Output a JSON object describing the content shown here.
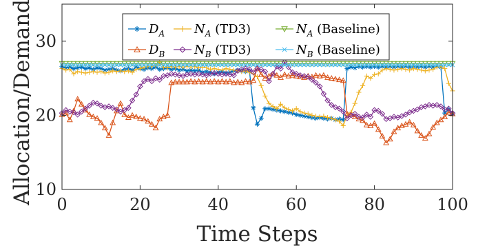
{
  "chart_data": {
    "type": "line",
    "xlabel": "Time Steps",
    "ylabel": "Allocation/Demand",
    "xlim": [
      0,
      100
    ],
    "ylim": [
      10,
      35
    ],
    "xticks": [
      0,
      20,
      40,
      60,
      80,
      100
    ],
    "yticks": [
      10,
      20,
      30
    ],
    "x": [
      0,
      1,
      2,
      3,
      4,
      5,
      6,
      7,
      8,
      9,
      10,
      11,
      12,
      13,
      14,
      15,
      16,
      17,
      18,
      19,
      20,
      21,
      22,
      23,
      24,
      25,
      26,
      27,
      28,
      29,
      30,
      31,
      32,
      33,
      34,
      35,
      36,
      37,
      38,
      39,
      40,
      41,
      42,
      43,
      44,
      45,
      46,
      47,
      48,
      49,
      50,
      51,
      52,
      53,
      54,
      55,
      56,
      57,
      58,
      59,
      60,
      61,
      62,
      63,
      64,
      65,
      66,
      67,
      68,
      69,
      70,
      71,
      72,
      73,
      74,
      75,
      76,
      77,
      78,
      79,
      80,
      81,
      82,
      83,
      84,
      85,
      86,
      87,
      88,
      89,
      90,
      91,
      92,
      93,
      94,
      95,
      96,
      97,
      98,
      99,
      100
    ],
    "legend_position": "top-center",
    "grid": false,
    "series": [
      {
        "name_main": "D",
        "name_sub": "A",
        "name_suffix": "",
        "color": "#0072BD",
        "marker": "star",
        "values": [
          26.6,
          26.4,
          26.5,
          26.3,
          26.4,
          26.5,
          26.3,
          26.4,
          26.2,
          26.4,
          26.3,
          26.1,
          26.2,
          26.3,
          26.1,
          26.0,
          26.2,
          26.3,
          26.1,
          26.5,
          26.3,
          26.2,
          26.4,
          26.3,
          26.5,
          26.2,
          26.3,
          26.4,
          26.2,
          26.3,
          26.1,
          26.2,
          26.0,
          26.1,
          26.0,
          26.1,
          25.8,
          25.9,
          25.8,
          25.6,
          25.8,
          25.9,
          25.7,
          25.8,
          26.0,
          26.1,
          26.0,
          25.9,
          26.0,
          21.0,
          18.8,
          19.6,
          20.9,
          20.9,
          20.8,
          20.7,
          20.6,
          20.5,
          20.4,
          20.3,
          20.1,
          20.0,
          19.9,
          19.8,
          19.7,
          19.6,
          19.7,
          19.6,
          19.5,
          19.6,
          19.4,
          19.5,
          19.4,
          26.3,
          26.5,
          26.4,
          26.6,
          26.5,
          26.6,
          26.5,
          26.6,
          26.5,
          26.6,
          26.5,
          26.6,
          26.5,
          26.6,
          26.5,
          26.6,
          26.5,
          26.6,
          26.5,
          26.6,
          26.5,
          26.6,
          26.5,
          26.6,
          26.5,
          20.3,
          20.8,
          20.2
        ]
      },
      {
        "name_main": "N",
        "name_sub": "A",
        "name_suffix": " (TD3)",
        "color": "#EDB120",
        "marker": "plus",
        "values": [
          26.3,
          26.1,
          26.2,
          25.6,
          25.9,
          25.8,
          25.7,
          25.8,
          25.9,
          25.8,
          25.9,
          25.7,
          25.8,
          26.0,
          25.9,
          26.0,
          25.9,
          26.0,
          25.8,
          26.2,
          26.3,
          26.5,
          26.6,
          26.6,
          26.7,
          27.2,
          26.5,
          26.4,
          26.6,
          26.5,
          26.6,
          26.5,
          26.6,
          26.5,
          26.6,
          26.4,
          26.5,
          26.4,
          26.2,
          26.3,
          26.2,
          26.1,
          26.3,
          26.2,
          26.1,
          26.0,
          25.9,
          26.0,
          25.8,
          25.6,
          25.2,
          24.0,
          22.6,
          21.6,
          21.2,
          20.9,
          21.5,
          21.0,
          20.8,
          20.6,
          20.9,
          20.5,
          20.3,
          20.2,
          20.0,
          19.9,
          19.8,
          19.9,
          19.7,
          19.6,
          19.4,
          19.2,
          18.6,
          20.0,
          20.4,
          21.6,
          23.1,
          24.0,
          25.3,
          25.0,
          25.5,
          25.6,
          26.1,
          26.3,
          26.2,
          26.1,
          26.2,
          26.3,
          26.2,
          26.1,
          26.3,
          26.2,
          26.1,
          26.0,
          26.1,
          26.2,
          26.5,
          26.6,
          26.3,
          24.3,
          23.3
        ]
      },
      {
        "name_main": "N",
        "name_sub": "A",
        "name_suffix": " (Baseline)",
        "color": "#77AC30",
        "marker": "triangle-down",
        "values": [
          27.0,
          27.0,
          27.0,
          27.0,
          27.0,
          27.0,
          27.0,
          27.0,
          27.0,
          27.0,
          27.0,
          27.0,
          27.0,
          27.0,
          27.0,
          27.0,
          27.0,
          27.0,
          27.0,
          27.0,
          27.0,
          27.0,
          27.0,
          27.0,
          27.0,
          27.0,
          27.0,
          27.0,
          27.0,
          27.0,
          27.0,
          27.0,
          27.0,
          27.0,
          27.0,
          27.0,
          27.0,
          27.0,
          27.0,
          27.0,
          27.0,
          27.0,
          27.0,
          27.0,
          27.0,
          27.0,
          27.0,
          27.0,
          27.0,
          27.0,
          27.0,
          27.0,
          27.0,
          27.0,
          27.0,
          27.0,
          27.0,
          27.0,
          27.0,
          27.0,
          27.0,
          27.0,
          27.0,
          27.0,
          27.0,
          27.0,
          27.0,
          27.0,
          27.0,
          27.0,
          27.0,
          27.0,
          27.0,
          27.0,
          27.0,
          27.0,
          27.0,
          27.0,
          27.0,
          27.0,
          27.0,
          27.0,
          27.0,
          27.0,
          27.0,
          27.0,
          27.0,
          27.0,
          27.0,
          27.0,
          27.0,
          27.0,
          27.0,
          27.0,
          27.0,
          27.0,
          27.0,
          27.0,
          27.0,
          27.0,
          27.0
        ]
      },
      {
        "name_main": "D",
        "name_sub": "B",
        "name_suffix": "",
        "color": "#D95319",
        "marker": "triangle-up",
        "values": [
          20.1,
          20.3,
          19.4,
          20.6,
          22.2,
          21.5,
          20.7,
          20.1,
          19.8,
          19.6,
          19.0,
          18.3,
          17.3,
          19.0,
          20.6,
          21.6,
          20.1,
          19.7,
          20.0,
          19.8,
          19.6,
          19.5,
          19.2,
          18.8,
          18.3,
          19.5,
          19.8,
          20.0,
          24.4,
          24.5,
          24.5,
          24.5,
          24.5,
          24.6,
          24.5,
          24.6,
          24.5,
          24.6,
          24.5,
          24.6,
          24.5,
          24.6,
          24.5,
          24.6,
          24.4,
          24.5,
          24.4,
          24.6,
          24.5,
          24.7,
          26.4,
          25.5,
          25.0,
          25.3,
          25.6,
          25.4,
          25.1,
          25.5,
          25.3,
          25.4,
          25.3,
          25.2,
          25.1,
          25.3,
          25.2,
          25.4,
          25.3,
          25.4,
          25.1,
          25.0,
          24.9,
          24.8,
          24.7,
          20.2,
          20.1,
          19.8,
          19.5,
          19.3,
          18.7,
          18.6,
          18.9,
          18.1,
          17.2,
          16.3,
          16.8,
          17.8,
          18.3,
          18.6,
          18.8,
          19.1,
          18.7,
          17.9,
          17.3,
          16.9,
          17.5,
          18.4,
          19.0,
          19.4,
          19.8,
          20.4,
          20.2
        ]
      },
      {
        "name_main": "N",
        "name_sub": "B",
        "name_suffix": " (TD3)",
        "color": "#7E2F8E",
        "marker": "diamond",
        "values": [
          20.3,
          20.7,
          20.5,
          20.4,
          20.1,
          20.5,
          20.9,
          21.3,
          21.7,
          21.6,
          21.3,
          21.1,
          21.2,
          21.0,
          20.8,
          20.5,
          20.7,
          21.0,
          22.0,
          22.8,
          23.9,
          24.6,
          24.9,
          24.6,
          25.0,
          24.8,
          25.3,
          25.4,
          25.6,
          25.5,
          25.4,
          25.3,
          25.5,
          25.6,
          25.5,
          25.6,
          25.5,
          25.4,
          25.6,
          25.7,
          25.6,
          25.5,
          25.6,
          25.5,
          25.4,
          26.0,
          26.2,
          26.3,
          26.2,
          25.8,
          26.3,
          26.2,
          25.9,
          24.6,
          25.6,
          26.6,
          26.3,
          27.2,
          26.5,
          25.8,
          25.6,
          25.4,
          25.3,
          25.2,
          24.8,
          24.4,
          23.9,
          22.9,
          22.0,
          21.4,
          21.1,
          20.9,
          20.5,
          19.6,
          20.0,
          20.2,
          19.8,
          19.7,
          20.1,
          19.8,
          20.7,
          20.6,
          20.2,
          19.5,
          19.6,
          19.8,
          19.7,
          19.9,
          20.1,
          20.4,
          20.6,
          20.8,
          21.1,
          21.2,
          21.4,
          21.3,
          21.4,
          21.2,
          20.8,
          20.9,
          20.3
        ]
      },
      {
        "name_main": "N",
        "name_sub": "B",
        "name_suffix": " (Baseline)",
        "color": "#4DBEEE",
        "marker": "x",
        "values": [
          26.8,
          26.8,
          26.8,
          26.8,
          26.8,
          26.8,
          26.8,
          26.8,
          26.8,
          26.8,
          26.8,
          26.8,
          26.8,
          26.8,
          26.8,
          26.8,
          26.8,
          26.8,
          26.8,
          26.8,
          26.8,
          26.8,
          26.8,
          26.8,
          26.8,
          26.8,
          26.8,
          26.8,
          26.8,
          26.8,
          26.8,
          26.8,
          26.8,
          26.8,
          26.8,
          26.8,
          26.8,
          26.8,
          26.8,
          26.8,
          26.8,
          26.8,
          26.8,
          26.8,
          26.8,
          26.8,
          26.8,
          26.8,
          26.8,
          26.8,
          26.8,
          26.8,
          26.8,
          26.8,
          26.8,
          26.8,
          26.8,
          26.8,
          26.8,
          26.8,
          26.8,
          26.8,
          26.8,
          26.8,
          26.8,
          26.8,
          26.8,
          26.8,
          26.8,
          26.8,
          26.8,
          26.8,
          26.8,
          26.8,
          26.8,
          26.8,
          26.8,
          26.8,
          26.8,
          26.8,
          26.8,
          26.8,
          26.8,
          26.8,
          26.8,
          26.8,
          26.8,
          26.8,
          26.8,
          26.8,
          26.8,
          26.8,
          26.8,
          26.8,
          26.8,
          26.8,
          26.8,
          26.8,
          26.8,
          26.8,
          26.8
        ]
      }
    ]
  }
}
